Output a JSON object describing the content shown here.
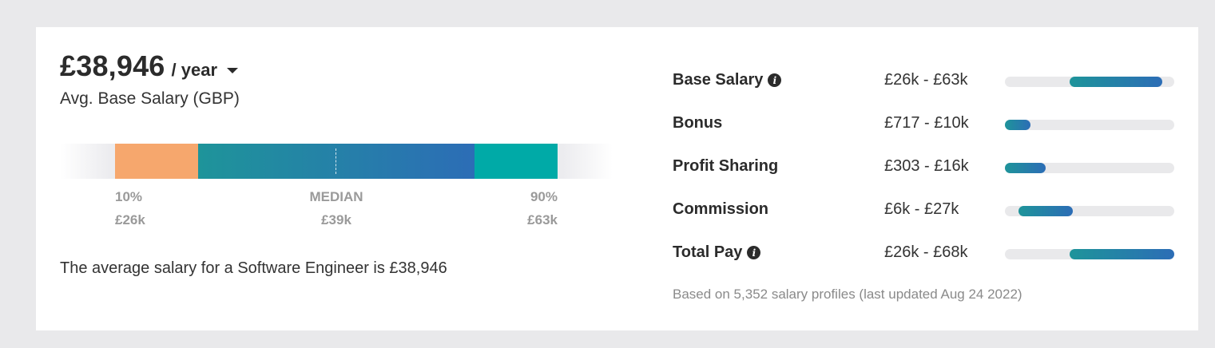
{
  "headline": {
    "amount": "£38,946",
    "period": "/ year"
  },
  "subtitle": "Avg. Base Salary (GBP)",
  "range_bar": {
    "low_label": "10%",
    "low_value": "£26k",
    "median_label": "MEDIAN",
    "median_value": "£39k",
    "high_label": "90%",
    "high_value": "£63k",
    "colors": {
      "low": "#f6a76d",
      "mid_start": "#1e949a",
      "mid_end": "#2c6db6",
      "high": "#00aaa7"
    }
  },
  "summary": "The average salary for a Software Engineer is £38,946",
  "pay_breakdown": [
    {
      "label": "Base Salary",
      "range": "£26k - £63k",
      "info": true,
      "range_start": 0.38,
      "range_end": 0.93
    },
    {
      "label": "Bonus",
      "range": "£717 - £10k",
      "info": false,
      "range_start": 0.0,
      "range_end": 0.15
    },
    {
      "label": "Profit Sharing",
      "range": "£303 - £16k",
      "info": false,
      "range_start": 0.0,
      "range_end": 0.24
    },
    {
      "label": "Commission",
      "range": "£6k - £27k",
      "info": false,
      "range_start": 0.08,
      "range_end": 0.4
    },
    {
      "label": "Total Pay",
      "range": "£26k - £68k",
      "info": true,
      "range_start": 0.38,
      "range_end": 1.0
    }
  ],
  "footnote": "Based on 5,352 salary profiles (last updated Aug 24 2022)"
}
